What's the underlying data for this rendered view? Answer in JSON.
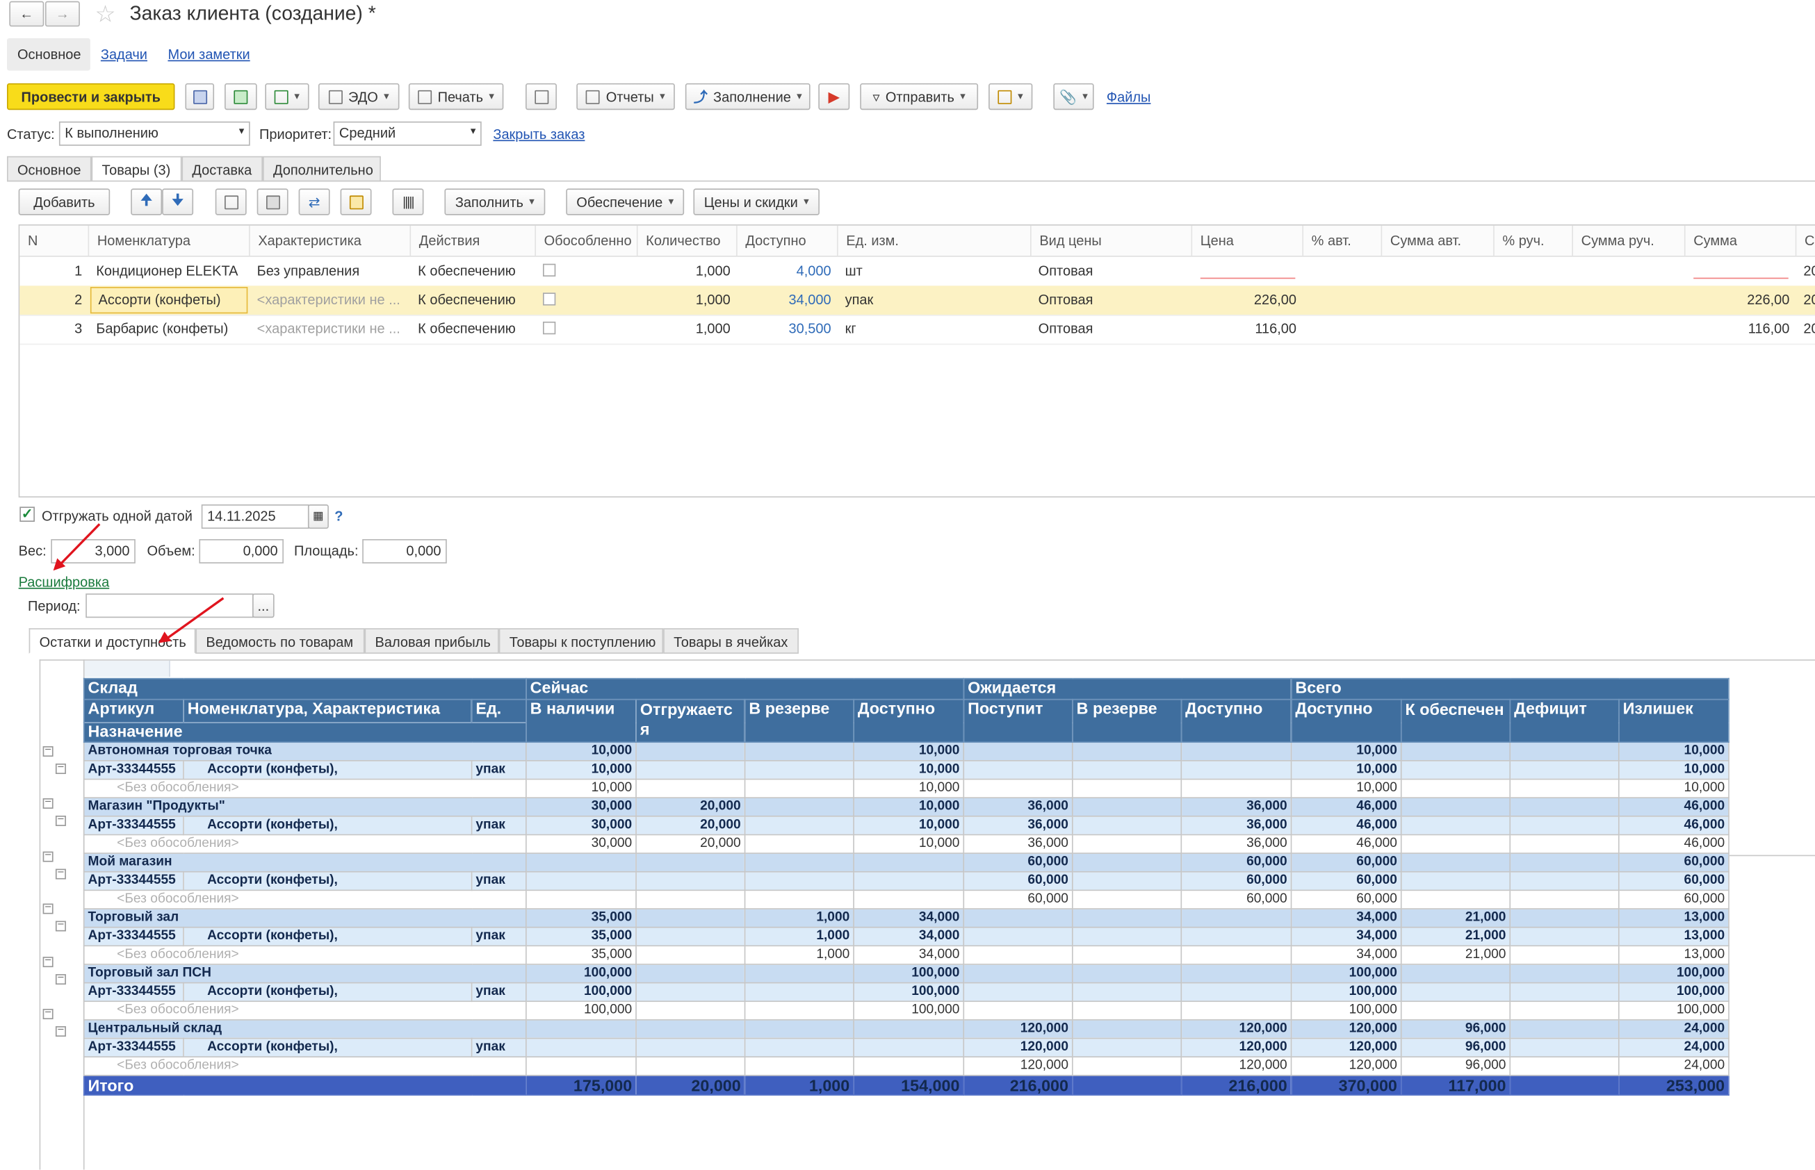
{
  "window": {
    "title": "Заказ клиента (создание) *"
  },
  "top_tabs": [
    {
      "label": "Основное"
    },
    {
      "label": "Задачи"
    },
    {
      "label": "Мои заметки"
    }
  ],
  "toolbar": {
    "post_close": "Провести и закрыть",
    "edo": "ЭДО",
    "print": "Печать",
    "reports": "Отчеты",
    "fill": "Заполнение",
    "send": "Отправить",
    "files": "Файлы"
  },
  "status_row": {
    "status_label": "Статус:",
    "status_value": "К выполнению",
    "priority_label": "Приоритет:",
    "priority_value": "Средний",
    "close_order": "Закрыть заказ"
  },
  "form_tabs": [
    {
      "label": "Основное"
    },
    {
      "label": "Товары (3)"
    },
    {
      "label": "Доставка"
    },
    {
      "label": "Дополнительно"
    }
  ],
  "goods_toolbar": {
    "add": "Добавить",
    "fill": "Заполнить",
    "supply": "Обеспечение",
    "prices": "Цены и скидки"
  },
  "goods_grid": {
    "headers": [
      "N",
      "Номенклатура",
      "Характеристика",
      "Действия",
      "Обособленно",
      "Количество",
      "Доступно",
      "Ед. изм.",
      "Вид цены",
      "Цена",
      "% авт.",
      "Сумма авт.",
      "% руч.",
      "Сумма руч.",
      "Сумма",
      "С"
    ],
    "rows": [
      {
        "n": "1",
        "name": "Кондиционер ELEKTA",
        "char": "Без управления",
        "action": "К обеспечению",
        "qty": "1,000",
        "avail": "4,000",
        "unit": "шт",
        "price_type": "Оптовая",
        "price": "",
        "sum": "",
        "tail": "20"
      },
      {
        "n": "2",
        "name": "Ассорти (конфеты)",
        "char": "<характеристики не ...",
        "action": "К обеспечению",
        "qty": "1,000",
        "avail": "34,000",
        "unit": "упак",
        "price_type": "Оптовая",
        "price": "226,00",
        "sum": "226,00",
        "tail": "20"
      },
      {
        "n": "3",
        "name": "Барбарис (конфеты)",
        "char": "<характеристики не ...",
        "action": "К обеспечению",
        "qty": "1,000",
        "avail": "30,500",
        "unit": "кг",
        "price_type": "Оптовая",
        "price": "116,00",
        "sum": "116,00",
        "tail": "20"
      }
    ]
  },
  "ship": {
    "label": "Отгружать одной датой",
    "date": "14.11.2025",
    "help": "?"
  },
  "measures": {
    "weight_label": "Вес:",
    "weight": "3,000",
    "volume_label": "Объем:",
    "volume": "0,000",
    "area_label": "Площадь:",
    "area": "0,000"
  },
  "decode_link": "Расшифровка",
  "period": {
    "label": "Период:",
    "value": "",
    "btn": "..."
  },
  "report_tabs": [
    {
      "label": "Остатки и доступность"
    },
    {
      "label": "Ведомость по товарам"
    },
    {
      "label": "Валовая прибыль"
    },
    {
      "label": "Товары к поступлению"
    },
    {
      "label": "Товары в ячейках"
    }
  ],
  "report": {
    "h_sklad": "Склад",
    "h_now": "Сейчас",
    "h_expected": "Ожидается",
    "h_total": "Всего",
    "h_article": "Артикул",
    "h_nom": "Номенклатура, Характеристика",
    "h_unit": "Ед.",
    "h_purpose": "Назначение",
    "cols": [
      "В наличии",
      "Отгружаетс я",
      "В резерве",
      "Доступно",
      "Поступит",
      "В резерве",
      "Доступно",
      "Доступно",
      "К обеспечен",
      "Дефицит",
      "Излишек"
    ],
    "groups": [
      {
        "wh": "Автономная торговая точка",
        "art": "Арт-33344555",
        "nom": "Ассорти (конфеты),",
        "unit": "упак",
        "bz": "<Без обособления>",
        "vals": [
          "10,000",
          "",
          "",
          "10,000",
          "",
          "",
          "",
          "10,000",
          "",
          "",
          "10,000"
        ]
      },
      {
        "wh": "Магазин \"Продукты\"",
        "art": "Арт-33344555",
        "nom": "Ассорти (конфеты),",
        "unit": "упак",
        "bz": "<Без обособления>",
        "vals": [
          "30,000",
          "20,000",
          "",
          "10,000",
          "36,000",
          "",
          "36,000",
          "46,000",
          "",
          "",
          "46,000"
        ]
      },
      {
        "wh": "Мой магазин",
        "art": "Арт-33344555",
        "nom": "Ассорти (конфеты),",
        "unit": "упак",
        "bz": "<Без обособления>",
        "vals": [
          "",
          "",
          "",
          "",
          "60,000",
          "",
          "60,000",
          "60,000",
          "",
          "",
          "60,000"
        ]
      },
      {
        "wh": "Торговый зал",
        "art": "Арт-33344555",
        "nom": "Ассорти (конфеты),",
        "unit": "упак",
        "bz": "<Без обособления>",
        "vals": [
          "35,000",
          "",
          "1,000",
          "34,000",
          "",
          "",
          "",
          "34,000",
          "21,000",
          "",
          "13,000"
        ]
      },
      {
        "wh": "Торговый зал ПСН",
        "art": "Арт-33344555",
        "nom": "Ассорти (конфеты),",
        "unit": "упак",
        "bz": "<Без обособления>",
        "vals": [
          "100,000",
          "",
          "",
          "100,000",
          "",
          "",
          "",
          "100,000",
          "",
          "",
          "100,000"
        ]
      },
      {
        "wh": "Центральный склад",
        "art": "Арт-33344555",
        "nom": "Ассорти (конфеты),",
        "unit": "упак",
        "bz": "<Без обособления>",
        "vals": [
          "",
          "",
          "",
          "",
          "120,000",
          "",
          "120,000",
          "120,000",
          "96,000",
          "",
          "24,000"
        ]
      }
    ],
    "total_label": "Итого",
    "totals": [
      "175,000",
      "20,000",
      "1,000",
      "154,000",
      "216,000",
      "",
      "216,000",
      "370,000",
      "117,000",
      "",
      "253,000"
    ]
  },
  "colors": {
    "accent_yellow": "#f8dc1a",
    "report_header": "#3f6e9e",
    "total_row": "#3f5fbf",
    "link": "#2154b3",
    "arrow": "#e0141e"
  }
}
